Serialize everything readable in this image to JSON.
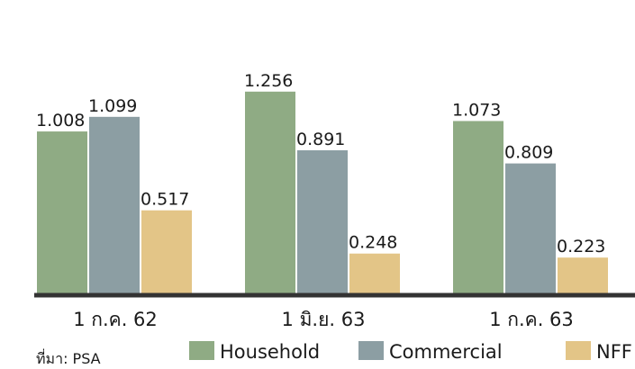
{
  "chart_data": {
    "type": "bar",
    "categories": [
      "1 ก.ค. 62",
      "1 มิ.ย. 63",
      "1 ก.ค. 63"
    ],
    "series": [
      {
        "name": "Household",
        "color": "#8fab84",
        "values": [
          1.008,
          1.256,
          1.073
        ]
      },
      {
        "name": "Commercial",
        "color": "#8c9ea3",
        "values": [
          1.099,
          0.891,
          0.809
        ]
      },
      {
        "name": "NFF",
        "color": "#e3c587",
        "values": [
          0.517,
          0.248,
          0.223
        ]
      }
    ],
    "value_labels": [
      [
        "1.008",
        "1.256",
        "1.073"
      ],
      [
        "1.099",
        "0.891",
        "0.809"
      ],
      [
        "0.517",
        "0.248",
        "0.223"
      ]
    ],
    "ylim": [
      0,
      1.3
    ],
    "grid": false,
    "legend_position": "bottom",
    "axis_color": "#333333"
  },
  "source_note": "ที่มา: PSA"
}
